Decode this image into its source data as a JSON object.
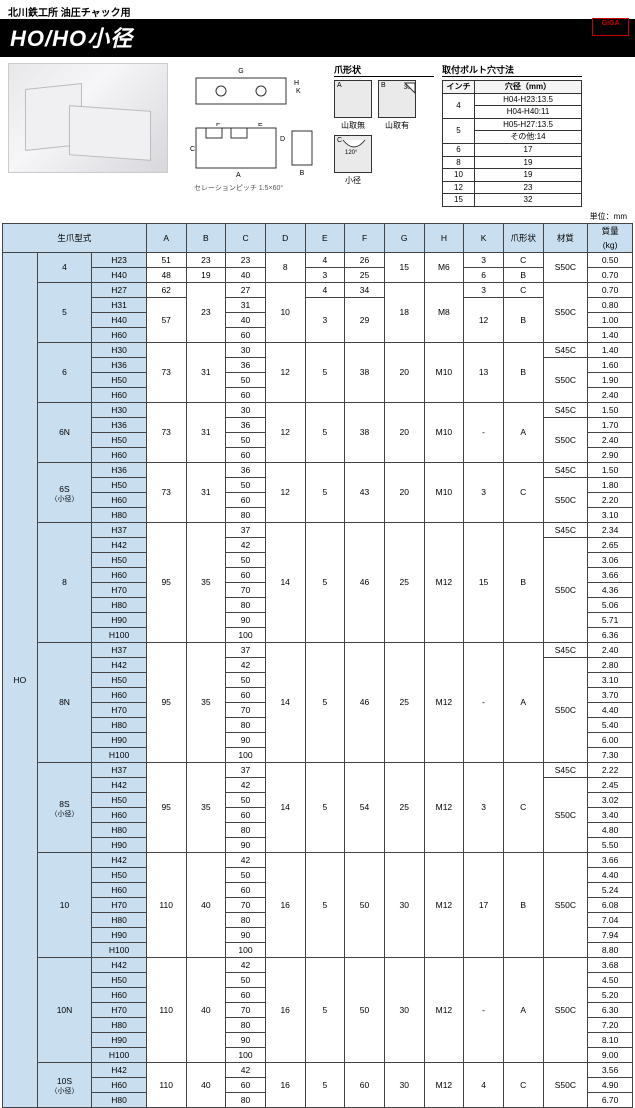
{
  "header": {
    "subtitle": "北川鉄工所 油圧チャック用",
    "title": "HO/HO小径",
    "logo_top": "GiGA",
    "logo_bottom": "SELECTION"
  },
  "drawing_note": "セレーションピッチ 1.5×60°",
  "claw": {
    "heading": "爪形状",
    "a_label": "A",
    "b_label": "B",
    "b_angle": "30°",
    "c_label": "C",
    "c_angle": "120°",
    "cap_a": "山取無",
    "cap_b": "山取有",
    "cap_c": "小径"
  },
  "bolt": {
    "heading": "取付ボルト穴寸法",
    "col1": "インチ",
    "col2": "穴径（mm）",
    "rows": [
      {
        "inch": "4",
        "dia": "H04-H23:13.5",
        "rs": 2
      },
      {
        "inch": "",
        "dia": "H04-H40:11"
      },
      {
        "inch": "5",
        "dia": "H05-H27:13.5",
        "rs": 2
      },
      {
        "inch": "",
        "dia": "その他:14"
      },
      {
        "inch": "6",
        "dia": "17",
        "rs": 1
      },
      {
        "inch": "8",
        "dia": "19",
        "rs": 1
      },
      {
        "inch": "10",
        "dia": "19",
        "rs": 1
      },
      {
        "inch": "12",
        "dia": "23",
        "rs": 1
      },
      {
        "inch": "15",
        "dia": "32",
        "rs": 1
      }
    ]
  },
  "unit": "単位：mm",
  "columns": {
    "model": "生爪型式",
    "A": "A",
    "B": "B",
    "C": "C",
    "D": "D",
    "E": "E",
    "F": "F",
    "G": "G",
    "H": "H",
    "K": "K",
    "shape": "爪形状",
    "mat": "材質",
    "wt": "質量\n(kg)"
  },
  "series_label": "HO",
  "groups": [
    {
      "size": "4",
      "size_sub": "",
      "rows": [
        {
          "code": "H23",
          "A": "51",
          "B": "23",
          "C": "23",
          "D": "8",
          "E": "4",
          "F": "26",
          "G": "15",
          "H": "M6",
          "K": "3",
          "shape": "C",
          "mat": "S50C",
          "wt": "0.50",
          "D_rs": 2,
          "G_rs": 2,
          "H_rs": 2,
          "mat_rs": 2
        },
        {
          "code": "H40",
          "A": "48",
          "B": "19",
          "C": "40",
          "E": "3",
          "F": "25",
          "K": "6",
          "shape": "B",
          "wt": "0.70"
        }
      ]
    },
    {
      "size": "5",
      "size_sub": "",
      "rows": [
        {
          "code": "H27",
          "A": "62",
          "B": "23",
          "C": "27",
          "D": "10",
          "E": "4",
          "F": "34",
          "G": "18",
          "H": "M8",
          "K": "3",
          "shape": "C",
          "mat": "S50C",
          "wt": "0.70",
          "B_rs": 4,
          "D_rs": 4,
          "G_rs": 4,
          "H_rs": 4,
          "mat_rs": 4
        },
        {
          "code": "H31",
          "A": "57",
          "C": "31",
          "E": "3",
          "F": "29",
          "K": "12",
          "shape": "B",
          "wt": "0.80",
          "A_rs": 3,
          "E_rs": 3,
          "F_rs": 3,
          "K_rs": 3,
          "shape_rs": 3
        },
        {
          "code": "H40",
          "C": "40",
          "wt": "1.00"
        },
        {
          "code": "H60",
          "C": "60",
          "wt": "1.40"
        }
      ]
    },
    {
      "size": "6",
      "size_sub": "",
      "rows": [
        {
          "code": "H30",
          "A": "73",
          "B": "31",
          "C": "30",
          "D": "12",
          "E": "5",
          "F": "38",
          "G": "20",
          "H": "M10",
          "K": "13",
          "shape": "B",
          "mat": "S45C",
          "wt": "1.40",
          "A_rs": 4,
          "B_rs": 4,
          "D_rs": 4,
          "E_rs": 4,
          "F_rs": 4,
          "G_rs": 4,
          "H_rs": 4,
          "K_rs": 4,
          "shape_rs": 4
        },
        {
          "code": "H36",
          "C": "36",
          "mat": "S50C",
          "wt": "1.60",
          "mat_rs": 3
        },
        {
          "code": "H50",
          "C": "50",
          "wt": "1.90"
        },
        {
          "code": "H60",
          "C": "60",
          "wt": "2.40"
        }
      ]
    },
    {
      "size": "6N",
      "size_sub": "",
      "rows": [
        {
          "code": "H30",
          "A": "73",
          "B": "31",
          "C": "30",
          "D": "12",
          "E": "5",
          "F": "38",
          "G": "20",
          "H": "M10",
          "K": "-",
          "shape": "A",
          "mat": "S45C",
          "wt": "1.50",
          "A_rs": 4,
          "B_rs": 4,
          "D_rs": 4,
          "E_rs": 4,
          "F_rs": 4,
          "G_rs": 4,
          "H_rs": 4,
          "K_rs": 4,
          "shape_rs": 4
        },
        {
          "code": "H36",
          "C": "36",
          "mat": "S50C",
          "wt": "1.70",
          "mat_rs": 3
        },
        {
          "code": "H50",
          "C": "50",
          "wt": "2.40"
        },
        {
          "code": "H60",
          "C": "60",
          "wt": "2.90"
        }
      ]
    },
    {
      "size": "6S",
      "size_sub": "（小径）",
      "rows": [
        {
          "code": "H36",
          "A": "73",
          "B": "31",
          "C": "36",
          "D": "12",
          "E": "5",
          "F": "43",
          "G": "20",
          "H": "M10",
          "K": "3",
          "shape": "C",
          "mat": "S45C",
          "wt": "1.50",
          "A_rs": 4,
          "B_rs": 4,
          "D_rs": 4,
          "E_rs": 4,
          "F_rs": 4,
          "G_rs": 4,
          "H_rs": 4,
          "K_rs": 4,
          "shape_rs": 4
        },
        {
          "code": "H50",
          "C": "50",
          "mat": "S50C",
          "wt": "1.80",
          "mat_rs": 3
        },
        {
          "code": "H60",
          "C": "60",
          "wt": "2.20"
        },
        {
          "code": "H80",
          "C": "80",
          "wt": "3.10"
        }
      ]
    },
    {
      "size": "8",
      "size_sub": "",
      "rows": [
        {
          "code": "H37",
          "A": "95",
          "B": "35",
          "C": "37",
          "D": "14",
          "E": "5",
          "F": "46",
          "G": "25",
          "H": "M12",
          "K": "15",
          "shape": "B",
          "mat": "S45C",
          "wt": "2.34",
          "A_rs": 8,
          "B_rs": 8,
          "D_rs": 8,
          "E_rs": 8,
          "F_rs": 8,
          "G_rs": 8,
          "H_rs": 8,
          "K_rs": 8,
          "shape_rs": 8
        },
        {
          "code": "H42",
          "C": "42",
          "mat": "S50C",
          "wt": "2.65",
          "mat_rs": 7
        },
        {
          "code": "H50",
          "C": "50",
          "wt": "3.06"
        },
        {
          "code": "H60",
          "C": "60",
          "wt": "3.66"
        },
        {
          "code": "H70",
          "C": "70",
          "wt": "4.36"
        },
        {
          "code": "H80",
          "C": "80",
          "wt": "5.06"
        },
        {
          "code": "H90",
          "C": "90",
          "wt": "5.71"
        },
        {
          "code": "H100",
          "C": "100",
          "wt": "6.36"
        }
      ]
    },
    {
      "size": "8N",
      "size_sub": "",
      "rows": [
        {
          "code": "H37",
          "A": "95",
          "B": "35",
          "C": "37",
          "D": "14",
          "E": "5",
          "F": "46",
          "G": "25",
          "H": "M12",
          "K": "-",
          "shape": "A",
          "mat": "S45C",
          "wt": "2.40",
          "A_rs": 8,
          "B_rs": 8,
          "D_rs": 8,
          "E_rs": 8,
          "F_rs": 8,
          "G_rs": 8,
          "H_rs": 8,
          "K_rs": 8,
          "shape_rs": 8
        },
        {
          "code": "H42",
          "C": "42",
          "mat": "S50C",
          "wt": "2.80",
          "mat_rs": 7
        },
        {
          "code": "H50",
          "C": "50",
          "wt": "3.10"
        },
        {
          "code": "H60",
          "C": "60",
          "wt": "3.70"
        },
        {
          "code": "H70",
          "C": "70",
          "wt": "4.40"
        },
        {
          "code": "H80",
          "C": "80",
          "wt": "5.40"
        },
        {
          "code": "H90",
          "C": "90",
          "wt": "6.00"
        },
        {
          "code": "H100",
          "C": "100",
          "wt": "7.30"
        }
      ]
    },
    {
      "size": "8S",
      "size_sub": "（小径）",
      "rows": [
        {
          "code": "H37",
          "A": "95",
          "B": "35",
          "C": "37",
          "D": "14",
          "E": "5",
          "F": "54",
          "G": "25",
          "H": "M12",
          "K": "3",
          "shape": "C",
          "mat": "S45C",
          "wt": "2.22",
          "A_rs": 6,
          "B_rs": 6,
          "D_rs": 6,
          "E_rs": 6,
          "F_rs": 6,
          "G_rs": 6,
          "H_rs": 6,
          "K_rs": 6,
          "shape_rs": 6
        },
        {
          "code": "H42",
          "C": "42",
          "mat": "S50C",
          "wt": "2.45",
          "mat_rs": 5
        },
        {
          "code": "H50",
          "C": "50",
          "wt": "3.02"
        },
        {
          "code": "H60",
          "C": "60",
          "wt": "3.40"
        },
        {
          "code": "H80",
          "C": "80",
          "wt": "4.80"
        },
        {
          "code": "H90",
          "C": "90",
          "wt": "5.50"
        }
      ]
    },
    {
      "size": "10",
      "size_sub": "",
      "rows": [
        {
          "code": "H42",
          "A": "110",
          "B": "40",
          "C": "42",
          "D": "16",
          "E": "5",
          "F": "50",
          "G": "30",
          "H": "M12",
          "K": "17",
          "shape": "B",
          "mat": "S50C",
          "wt": "3.66",
          "A_rs": 7,
          "B_rs": 7,
          "D_rs": 7,
          "E_rs": 7,
          "F_rs": 7,
          "G_rs": 7,
          "H_rs": 7,
          "K_rs": 7,
          "shape_rs": 7,
          "mat_rs": 7
        },
        {
          "code": "H50",
          "C": "50",
          "wt": "4.40"
        },
        {
          "code": "H60",
          "C": "60",
          "wt": "5.24"
        },
        {
          "code": "H70",
          "C": "70",
          "wt": "6.08"
        },
        {
          "code": "H80",
          "C": "80",
          "wt": "7.04"
        },
        {
          "code": "H90",
          "C": "90",
          "wt": "7.94"
        },
        {
          "code": "H100",
          "C": "100",
          "wt": "8.80"
        }
      ]
    },
    {
      "size": "10N",
      "size_sub": "",
      "rows": [
        {
          "code": "H42",
          "A": "110",
          "B": "40",
          "C": "42",
          "D": "16",
          "E": "5",
          "F": "50",
          "G": "30",
          "H": "M12",
          "K": "-",
          "shape": "A",
          "mat": "S50C",
          "wt": "3.68",
          "A_rs": 7,
          "B_rs": 7,
          "D_rs": 7,
          "E_rs": 7,
          "F_rs": 7,
          "G_rs": 7,
          "H_rs": 7,
          "K_rs": 7,
          "shape_rs": 7,
          "mat_rs": 7
        },
        {
          "code": "H50",
          "C": "50",
          "wt": "4.50"
        },
        {
          "code": "H60",
          "C": "60",
          "wt": "5.20"
        },
        {
          "code": "H70",
          "C": "70",
          "wt": "6.30"
        },
        {
          "code": "H80",
          "C": "80",
          "wt": "7.20"
        },
        {
          "code": "H90",
          "C": "90",
          "wt": "8.10"
        },
        {
          "code": "H100",
          "C": "100",
          "wt": "9.00"
        }
      ]
    },
    {
      "size": "10S",
      "size_sub": "（小径）",
      "rows": [
        {
          "code": "H42",
          "A": "110",
          "B": "40",
          "C": "42",
          "D": "16",
          "E": "5",
          "F": "60",
          "G": "30",
          "H": "M12",
          "K": "4",
          "shape": "C",
          "mat": "S50C",
          "wt": "3.56",
          "A_rs": 3,
          "B_rs": 3,
          "D_rs": 3,
          "E_rs": 3,
          "F_rs": 3,
          "G_rs": 3,
          "H_rs": 3,
          "K_rs": 3,
          "shape_rs": 3,
          "mat_rs": 3
        },
        {
          "code": "H60",
          "C": "60",
          "wt": "4.90"
        },
        {
          "code": "H80",
          "C": "80",
          "wt": "6.70"
        }
      ]
    }
  ]
}
